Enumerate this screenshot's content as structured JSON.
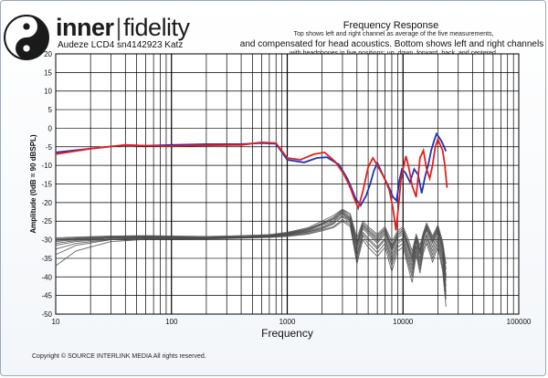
{
  "header": {
    "brand_part1": "inner",
    "brand_part2": "fidelity",
    "model_label": "Audeze LCD4 sn4142923 Katz"
  },
  "footer": {
    "copyright": "Copyright © SOURCE INTERLINK MEDIA All rights reserved."
  },
  "chart_data": {
    "type": "line",
    "title": "Frequency Response",
    "notes": [
      "Top shows left and right channel as average of the five measurements,",
      "and compensated for head acoustics. Bottom shows left and right channels",
      "with headphones in five positions; up, down, forward, back, and centered."
    ],
    "xlabel": "Frequency",
    "ylabel": "Amplitude (0dB = 90 dBSPL)",
    "xscale": "log",
    "xlim": [
      10,
      100000
    ],
    "ylim": [
      -50,
      20
    ],
    "x_ticks": [
      10,
      100,
      1000,
      10000,
      100000
    ],
    "x_tick_labels": [
      "10",
      "100",
      "1000",
      "10000",
      "100000"
    ],
    "y_ticks": [
      20,
      15,
      10,
      5,
      0,
      -5,
      -10,
      -15,
      -20,
      -25,
      -30,
      -35,
      -40,
      -45,
      -50
    ],
    "grid": true,
    "colors": {
      "left": "#1f33b8",
      "right": "#e02020",
      "raw": "#4a4a4a"
    },
    "series": [
      {
        "role": "left",
        "x": [
          10,
          20,
          40,
          60,
          100,
          200,
          400,
          600,
          800,
          1000,
          1400,
          1800,
          2200,
          2800,
          3300,
          3600,
          3900,
          4300,
          4800,
          5200,
          5600,
          6000,
          6800,
          7600,
          8200,
          8800,
          9300,
          9800,
          10500,
          11500,
          12500,
          13500,
          14500,
          15500,
          16500,
          17500,
          18500,
          19500,
          20500,
          21500,
          22500,
          23500
        ],
        "y": [
          -6.5,
          -5.5,
          -4.5,
          -4.7,
          -4.5,
          -4.3,
          -4.3,
          -4.0,
          -4.2,
          -8.5,
          -9.2,
          -8.0,
          -7.8,
          -9.8,
          -13.5,
          -16.2,
          -19.0,
          -20.8,
          -18.2,
          -15.0,
          -11.5,
          -9.3,
          -13.0,
          -16.0,
          -18.5,
          -19.5,
          -14.0,
          -11.0,
          -12.0,
          -14.5,
          -11.0,
          -12.5,
          -17.5,
          -13.0,
          -10.0,
          -6.0,
          -3.5,
          -1.5,
          -2.5,
          -3.5,
          -4.8,
          -6.2
        ]
      },
      {
        "role": "right",
        "x": [
          10,
          20,
          40,
          60,
          100,
          200,
          400,
          600,
          800,
          1000,
          1300,
          1700,
          2100,
          2600,
          3100,
          3500,
          3800,
          4100,
          4500,
          5000,
          5500,
          6000,
          6800,
          7600,
          8200,
          8700,
          9200,
          9600,
          10000,
          10600,
          11200,
          12000,
          13000,
          14000,
          15000,
          16000,
          17000,
          18000,
          19000,
          20000,
          21000,
          22000,
          23000,
          24000
        ],
        "y": [
          -7.0,
          -5.5,
          -4.5,
          -4.7,
          -4.8,
          -4.6,
          -4.5,
          -3.8,
          -4.0,
          -8.0,
          -8.5,
          -7.0,
          -6.5,
          -9.0,
          -12.5,
          -16.0,
          -19.0,
          -21.5,
          -17.0,
          -10.5,
          -8.0,
          -10.0,
          -13.0,
          -16.5,
          -21.5,
          -27.5,
          -20.0,
          -14.0,
          -11.0,
          -7.5,
          -10.5,
          -15.5,
          -18.5,
          -8.0,
          -6.0,
          -11.0,
          -13.5,
          -10.0,
          -5.0,
          -3.0,
          -4.5,
          -6.0,
          -10.0,
          -16.0
        ]
      },
      {
        "role": "raw",
        "name": "trace-1",
        "x": [
          10,
          15,
          30,
          60,
          100,
          200,
          400,
          700,
          1000,
          1500,
          2000,
          2500,
          3000,
          3500,
          4000,
          4500,
          5000,
          6000,
          7000,
          8000,
          9000,
          10000,
          11000,
          12000,
          13000,
          14000,
          15000,
          16000,
          18000,
          20000,
          22000,
          23500
        ],
        "y": [
          -30.5,
          -30.0,
          -29.5,
          -29.3,
          -29.5,
          -29.5,
          -29.3,
          -29.0,
          -28.5,
          -27.5,
          -26.0,
          -25.0,
          -22.5,
          -24.0,
          -32.0,
          -26.5,
          -28.0,
          -30.5,
          -28.0,
          -33.0,
          -29.0,
          -28.0,
          -32.0,
          -36.0,
          -30.0,
          -34.0,
          -29.5,
          -27.0,
          -31.0,
          -27.5,
          -33.0,
          -41.0
        ]
      },
      {
        "role": "raw",
        "name": "trace-2",
        "x": [
          10,
          15,
          30,
          60,
          100,
          200,
          400,
          700,
          1000,
          1500,
          2000,
          2500,
          3000,
          3500,
          4000,
          4500,
          5000,
          6000,
          7000,
          8000,
          9000,
          10000,
          11000,
          12000,
          13000,
          14000,
          15000,
          16000,
          18000,
          20000,
          22000,
          23500
        ],
        "y": [
          -31.5,
          -30.5,
          -29.8,
          -29.6,
          -29.7,
          -29.6,
          -29.4,
          -29.2,
          -28.8,
          -28.0,
          -27.0,
          -25.8,
          -23.5,
          -25.0,
          -34.0,
          -28.0,
          -29.5,
          -32.0,
          -29.5,
          -35.0,
          -30.5,
          -29.5,
          -34.0,
          -38.0,
          -31.5,
          -36.0,
          -31.0,
          -28.5,
          -33.0,
          -29.0,
          -35.0,
          -44.0
        ]
      },
      {
        "role": "raw",
        "name": "trace-3",
        "x": [
          10,
          15,
          30,
          60,
          100,
          200,
          400,
          700,
          1000,
          1500,
          2000,
          2500,
          3000,
          3500,
          4000,
          4500,
          5000,
          6000,
          7000,
          8000,
          9000,
          10000,
          11000,
          12000,
          13000,
          14000,
          15000,
          16000,
          18000,
          20000,
          22000,
          23500
        ],
        "y": [
          -29.8,
          -29.5,
          -29.2,
          -29.0,
          -29.2,
          -29.3,
          -29.1,
          -28.8,
          -28.2,
          -27.0,
          -25.5,
          -24.0,
          -22.0,
          -23.5,
          -30.5,
          -25.5,
          -27.0,
          -29.0,
          -27.0,
          -31.5,
          -28.0,
          -27.0,
          -30.5,
          -34.0,
          -29.0,
          -32.5,
          -28.5,
          -26.0,
          -29.5,
          -26.5,
          -31.5,
          -38.0
        ]
      },
      {
        "role": "raw",
        "name": "trace-4",
        "x": [
          10,
          15,
          30,
          60,
          100,
          200,
          400,
          700,
          1000,
          1500,
          2000,
          2500,
          3000,
          3500,
          4000,
          4500,
          5000,
          6000,
          7000,
          8000,
          9000,
          10000,
          11000,
          12000,
          13000,
          14000,
          15000,
          16000,
          18000,
          20000,
          22000,
          23500
        ],
        "y": [
          -34.0,
          -31.5,
          -30.0,
          -29.7,
          -29.8,
          -29.7,
          -29.5,
          -29.3,
          -29.0,
          -28.3,
          -27.3,
          -26.5,
          -24.5,
          -26.0,
          -35.5,
          -29.0,
          -31.0,
          -33.5,
          -31.0,
          -37.0,
          -32.0,
          -31.0,
          -36.0,
          -40.0,
          -33.0,
          -38.0,
          -32.5,
          -30.0,
          -35.0,
          -31.0,
          -37.5,
          -46.0
        ]
      },
      {
        "role": "raw",
        "name": "trace-5",
        "x": [
          10,
          15,
          30,
          60,
          100,
          200,
          400,
          700,
          1000,
          1500,
          2000,
          2500,
          3000,
          3500,
          4000,
          4500,
          5000,
          6000,
          7000,
          8000,
          9000,
          10000,
          11000,
          12000,
          13000,
          14000,
          15000,
          16000,
          18000,
          20000,
          22000,
          23500
        ],
        "y": [
          -30.2,
          -29.8,
          -29.4,
          -29.2,
          -29.3,
          -29.4,
          -29.2,
          -28.9,
          -28.4,
          -27.3,
          -25.8,
          -24.5,
          -22.8,
          -24.5,
          -31.5,
          -26.0,
          -27.5,
          -30.0,
          -27.5,
          -32.5,
          -28.5,
          -27.5,
          -31.5,
          -35.0,
          -29.5,
          -33.0,
          -29.0,
          -26.5,
          -30.5,
          -27.0,
          -32.0,
          -39.5
        ]
      },
      {
        "role": "raw",
        "name": "trace-6",
        "x": [
          10,
          15,
          30,
          60,
          100,
          200,
          400,
          700,
          1000,
          1500,
          2000,
          2500,
          3000,
          3500,
          4000,
          4500,
          5000,
          6000,
          7000,
          8000,
          9000,
          10000,
          11000,
          12000,
          13000,
          14000,
          15000,
          16000,
          18000,
          20000,
          22000,
          23500
        ],
        "y": [
          -37.0,
          -33.0,
          -30.5,
          -29.9,
          -29.9,
          -29.8,
          -29.6,
          -29.4,
          -29.1,
          -28.5,
          -27.6,
          -26.8,
          -25.0,
          -26.5,
          -36.5,
          -30.0,
          -32.0,
          -34.5,
          -32.0,
          -38.5,
          -33.0,
          -32.0,
          -37.0,
          -41.5,
          -34.0,
          -39.0,
          -33.5,
          -31.0,
          -36.0,
          -32.0,
          -38.5,
          -48.0
        ]
      },
      {
        "role": "raw",
        "name": "trace-7",
        "x": [
          10,
          15,
          30,
          60,
          100,
          200,
          400,
          700,
          1000,
          1500,
          2000,
          2500,
          3000,
          3500,
          4000,
          4500,
          5000,
          6000,
          7000,
          8000,
          9000,
          10000,
          11000,
          12000,
          13000,
          14000,
          15000,
          16000,
          18000,
          20000,
          22000,
          23500
        ],
        "y": [
          -31.0,
          -30.2,
          -29.6,
          -29.4,
          -29.6,
          -29.5,
          -29.3,
          -29.1,
          -28.6,
          -27.7,
          -26.5,
          -25.3,
          -23.0,
          -24.8,
          -33.0,
          -27.0,
          -28.5,
          -31.0,
          -28.5,
          -34.0,
          -29.5,
          -28.5,
          -33.0,
          -37.0,
          -30.5,
          -35.0,
          -30.0,
          -27.5,
          -32.0,
          -28.0,
          -34.0,
          -42.5
        ]
      },
      {
        "role": "raw",
        "name": "trace-8",
        "x": [
          10,
          15,
          30,
          60,
          100,
          200,
          400,
          700,
          1000,
          1500,
          2000,
          2500,
          3000,
          3500,
          4000,
          4500,
          5000,
          6000,
          7000,
          8000,
          9000,
          10000,
          11000,
          12000,
          13000,
          14000,
          15000,
          16000,
          18000,
          20000,
          22000,
          23500
        ],
        "y": [
          -29.5,
          -29.3,
          -29.0,
          -28.9,
          -29.0,
          -29.1,
          -28.9,
          -28.6,
          -28.0,
          -26.8,
          -25.0,
          -23.5,
          -21.8,
          -23.0,
          -29.5,
          -25.0,
          -26.5,
          -28.5,
          -26.5,
          -30.5,
          -27.5,
          -26.5,
          -29.5,
          -33.0,
          -28.5,
          -31.5,
          -28.0,
          -25.5,
          -29.0,
          -26.0,
          -30.5,
          -36.5
        ]
      },
      {
        "role": "raw",
        "name": "trace-9",
        "x": [
          10,
          15,
          30,
          60,
          100,
          200,
          400,
          700,
          1000,
          1500,
          2000,
          2500,
          3000,
          3500,
          4000,
          4500,
          5000,
          6000,
          7000,
          8000,
          9000,
          10000,
          11000,
          12000,
          13000,
          14000,
          15000,
          16000,
          18000,
          20000,
          22000,
          23500
        ],
        "y": [
          -32.5,
          -31.0,
          -29.9,
          -29.5,
          -29.7,
          -29.6,
          -29.4,
          -29.2,
          -28.7,
          -27.9,
          -26.8,
          -25.6,
          -23.8,
          -25.5,
          -34.5,
          -28.5,
          -30.0,
          -32.5,
          -30.0,
          -36.0,
          -31.0,
          -30.0,
          -35.0,
          -39.0,
          -32.0,
          -37.0,
          -31.5,
          -29.0,
          -34.0,
          -30.0,
          -36.0,
          -45.0
        ]
      },
      {
        "role": "raw",
        "name": "trace-10",
        "x": [
          10,
          15,
          30,
          60,
          100,
          200,
          400,
          700,
          1000,
          1500,
          2000,
          2500,
          3000,
          3500,
          4000,
          4500,
          5000,
          6000,
          7000,
          8000,
          9000,
          10000,
          11000,
          12000,
          13000,
          14000,
          15000,
          16000,
          18000,
          20000,
          22000,
          23500
        ],
        "y": [
          -30.0,
          -29.7,
          -29.3,
          -29.1,
          -29.4,
          -29.4,
          -29.2,
          -28.9,
          -28.3,
          -27.2,
          -25.7,
          -24.3,
          -22.3,
          -24.2,
          -31.0,
          -26.0,
          -27.5,
          -29.5,
          -27.0,
          -32.0,
          -28.5,
          -27.5,
          -31.0,
          -35.0,
          -29.5,
          -33.5,
          -29.0,
          -26.5,
          -30.0,
          -27.0,
          -32.0,
          -40.0
        ]
      }
    ]
  }
}
